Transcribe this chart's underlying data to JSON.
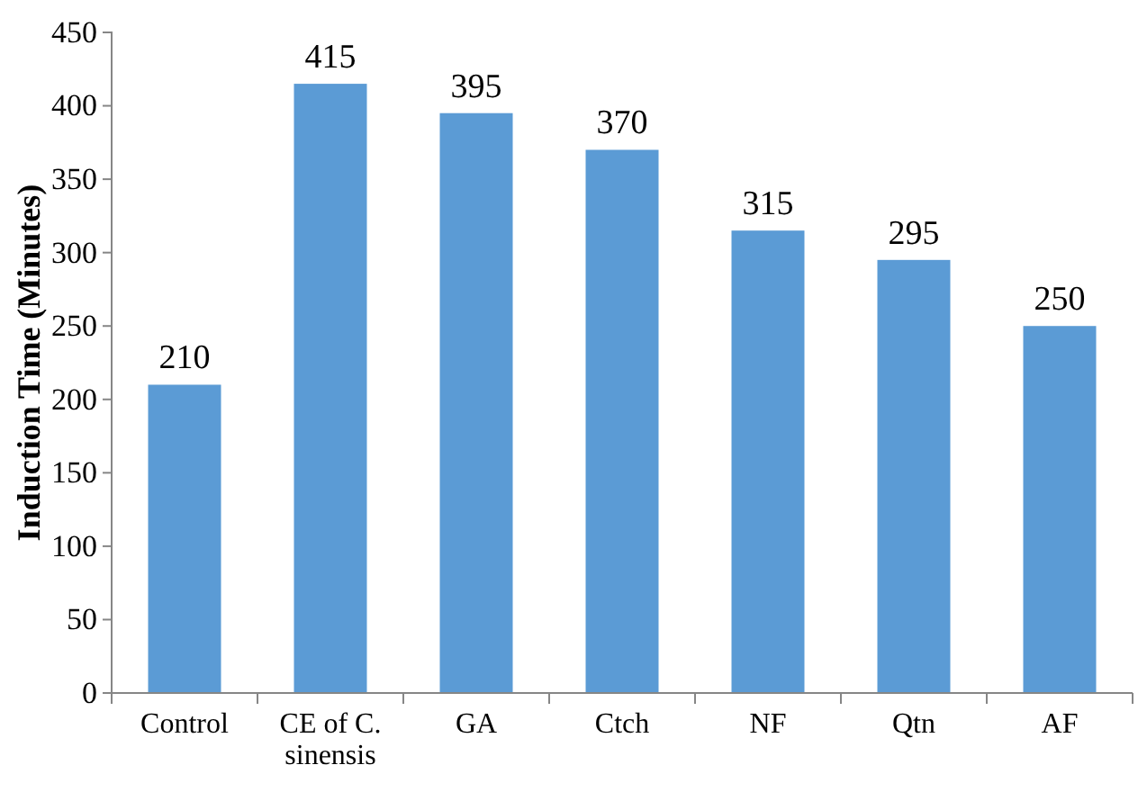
{
  "chart_data": {
    "type": "bar",
    "ylabel": "Induction Time (Minutes)",
    "categories": [
      "Control",
      "CE of C. sinensis",
      "GA",
      "Ctch",
      "NF",
      "Qtn",
      "AF"
    ],
    "values": [
      210,
      415,
      395,
      370,
      315,
      295,
      250
    ],
    "color": "#5b9bd5",
    "ylim": [
      0,
      450
    ],
    "yticks": [
      0,
      50,
      100,
      150,
      200,
      250,
      300,
      350,
      400,
      450
    ],
    "grid": false,
    "data_labels": true
  }
}
